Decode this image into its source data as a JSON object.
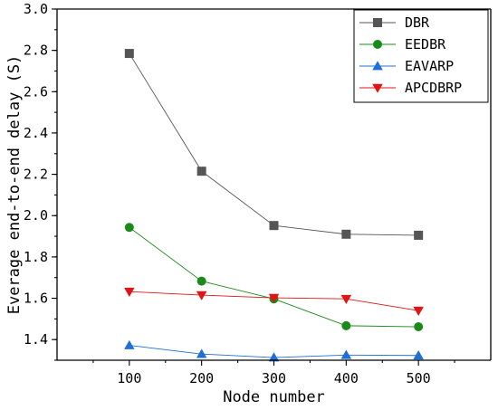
{
  "chart_data": {
    "type": "line",
    "title": "",
    "xlabel": "Node number",
    "ylabel": "Everage end-to-end delay (S)",
    "x": [
      100,
      200,
      300,
      400,
      500
    ],
    "x_ticks": [
      "100",
      "200",
      "300",
      "400",
      "500"
    ],
    "xlim": [
      0,
      600
    ],
    "ylim": [
      1.3,
      3.0
    ],
    "y_ticks": [
      "1.4",
      "1.6",
      "1.8",
      "2.0",
      "2.2",
      "2.4",
      "2.6",
      "2.8",
      "3.0"
    ],
    "grid": false,
    "legend_position": "top-right",
    "series": [
      {
        "name": "DBR",
        "values": [
          2.785,
          2.215,
          1.952,
          1.91,
          1.905
        ],
        "color": "#555555",
        "marker": "square"
      },
      {
        "name": "EEDBR",
        "values": [
          1.943,
          1.683,
          1.597,
          1.467,
          1.462
        ],
        "color": "#1a8a1a",
        "marker": "circle"
      },
      {
        "name": "EAVARP",
        "values": [
          1.372,
          1.33,
          1.313,
          1.325,
          1.323
        ],
        "color": "#1f6fd6",
        "marker": "triangle-up"
      },
      {
        "name": "APCDBRP",
        "values": [
          1.632,
          1.615,
          1.602,
          1.597,
          1.54
        ],
        "color": "#e01414",
        "marker": "triangle-down"
      }
    ]
  }
}
